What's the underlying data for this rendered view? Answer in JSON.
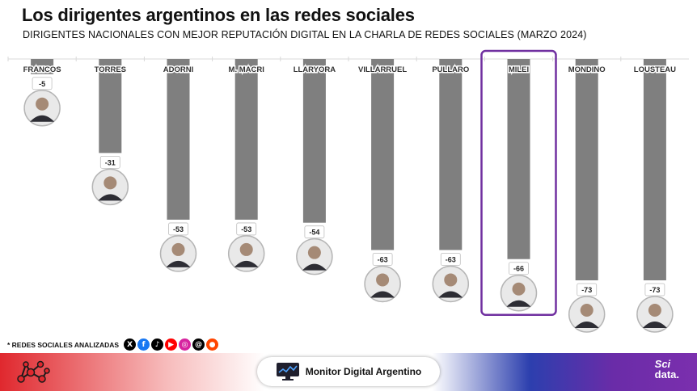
{
  "title": "Los dirigentes argentinos en las redes sociales",
  "subtitle": "DIRIGENTES NACIONALES CON MEJOR REPUTACIÓN DIGITAL EN LA CHARLA DE REDES SOCIALES (MARZO 2024)",
  "chart_data": {
    "type": "bar",
    "categories": [
      "FRANCOS",
      "TORRES",
      "ADORNI",
      "M. MACRI",
      "LLARYORA",
      "VILLARRUEL",
      "PULLARO",
      "MILEI",
      "MONDINO",
      "LOUSTEAU"
    ],
    "values": [
      -5,
      -31,
      -53,
      -53,
      -54,
      -63,
      -63,
      -66,
      -73,
      -73
    ],
    "labels": [
      "-5",
      "-31",
      "-53",
      "-53",
      "-54",
      "-63",
      "-63",
      "-66",
      "-73",
      "-73"
    ],
    "highlight": "MILEI",
    "orientation": "vertical-downward",
    "ylim": [
      -73,
      0
    ],
    "bar_color": "#7f7f7f",
    "highlight_color": "#7030a0"
  },
  "social": {
    "label": "* REDES SOCIALES ANALIZADAS",
    "icons": [
      {
        "name": "x-icon",
        "glyph": "X",
        "color": "#000000"
      },
      {
        "name": "facebook-icon",
        "glyph": "f",
        "color": "#1877f2"
      },
      {
        "name": "tiktok-icon",
        "glyph": "♪",
        "color": "#000000"
      },
      {
        "name": "youtube-icon",
        "glyph": "▶",
        "color": "#ff0000"
      },
      {
        "name": "instagram-icon",
        "glyph": "◎",
        "color": "#d6249f"
      },
      {
        "name": "threads-icon",
        "glyph": "@",
        "color": "#000000"
      },
      {
        "name": "reddit-icon",
        "glyph": "●",
        "color": "#ff4500"
      }
    ]
  },
  "footer": {
    "brand": "Monitor Digital Argentino",
    "logo_line1": "Sci",
    "logo_line2": "data."
  }
}
